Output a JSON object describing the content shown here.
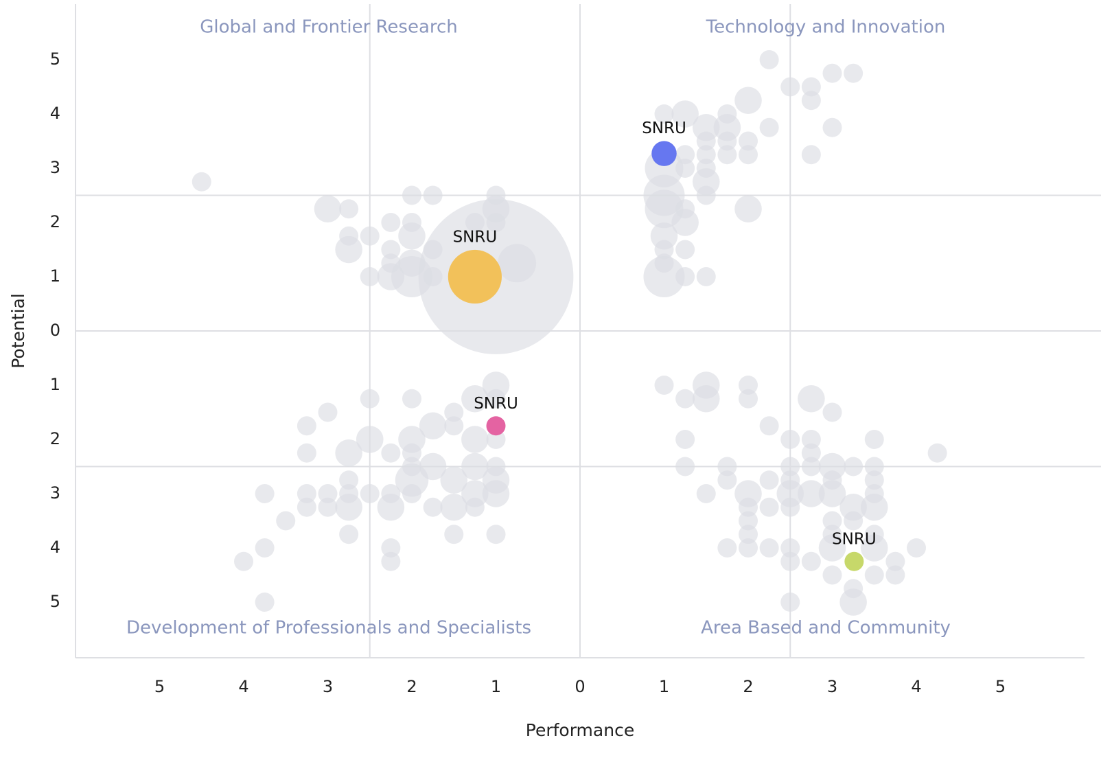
{
  "chart_data": {
    "type": "bubble",
    "x_label": "Performance",
    "y_label": "Potential",
    "quadrant_labels": [
      "Global and Frontier Research",
      "Technology and Innovation",
      "Development of Professionals and Specialists",
      "Area Based and Community"
    ],
    "xlim": [
      -6,
      6
    ],
    "ylim": [
      -6,
      6
    ],
    "xticks": [
      {
        "value": -5,
        "label": "5"
      },
      {
        "value": -4,
        "label": "4"
      },
      {
        "value": -3,
        "label": "3"
      },
      {
        "value": -2,
        "label": "2"
      },
      {
        "value": -1,
        "label": "1"
      },
      0,
      1,
      2,
      3,
      4,
      5
    ],
    "yticks": [
      {
        "value": -5,
        "label": "5"
      },
      {
        "value": -4,
        "label": "4"
      },
      {
        "value": -3,
        "label": "3"
      },
      {
        "value": -2,
        "label": "2"
      },
      {
        "value": -1,
        "label": "1"
      },
      0,
      1,
      2,
      3,
      4,
      5
    ],
    "xgrid": [
      -2.5,
      0,
      2.5
    ],
    "ygrid": [
      -2.5,
      0,
      2.5
    ],
    "series": [
      {
        "color": "#dcdde3",
        "x": [
          -1,
          -4.5,
          -3,
          -2.75,
          -2.75,
          -2.75,
          -2.5,
          -2.5,
          -2.25,
          -2.25,
          -2.25,
          -2.25,
          -2,
          -2,
          -2,
          -2,
          -2,
          -1.75,
          -1.75,
          -1.75,
          -1,
          -1,
          -1.25,
          -1,
          -0.75,
          2.25,
          2.5,
          2.75,
          2.75,
          3,
          3.25,
          2,
          1.75,
          1,
          1.25,
          1.5,
          1.75,
          2.25,
          3,
          1.5,
          1.75,
          2,
          1.5,
          1.75,
          2,
          2.75,
          1.25,
          1,
          1.5,
          1.25,
          1.5,
          1.5,
          1,
          1,
          1.25,
          2,
          1.25,
          1,
          1,
          1.25,
          1,
          1,
          1.25,
          1.5,
          -1,
          -1.25,
          -1,
          -2.5,
          -2,
          -3,
          -3.25,
          -1.5,
          -1.75,
          -1.5,
          -2.5,
          -2,
          -1.25,
          -1,
          -3.25,
          -2.75,
          -2.25,
          -2,
          -2,
          -1.75,
          -1.25,
          -1,
          -2.75,
          -2,
          -1.5,
          -1,
          -3.75,
          -3.25,
          -3,
          -2.75,
          -2.5,
          -2.25,
          -2,
          -1.25,
          -1,
          -3.25,
          -3,
          -2.75,
          -2.25,
          -1.75,
          -1.5,
          -1.25,
          -3.5,
          -2.75,
          -1.5,
          -1,
          -3.75,
          -2.25,
          -4,
          -2.25,
          -3.75,
          1,
          1.5,
          2,
          1.25,
          1.5,
          2,
          2.75,
          3,
          2.25,
          1.25,
          2.5,
          2.75,
          3.5,
          4.25,
          2.75,
          1.25,
          1.75,
          2.5,
          2.75,
          3,
          3.25,
          3.5,
          1.75,
          2.25,
          2.5,
          3,
          3.5,
          1.5,
          2,
          2.5,
          2.75,
          3,
          3.5,
          2,
          2.25,
          2.5,
          3.25,
          3.5,
          2,
          3,
          3.25,
          2,
          3,
          3.5,
          1.75,
          2,
          2.25,
          2.5,
          3,
          3.5,
          4,
          2.5,
          2.75,
          3.75,
          3,
          3.5,
          3.75,
          3.25,
          2.5,
          3.25
        ],
        "y": [
          1,
          2.75,
          2.25,
          2.25,
          1.75,
          1.5,
          1.75,
          1,
          2,
          1.5,
          1.25,
          1,
          2.5,
          2,
          1.75,
          1.25,
          1,
          2.5,
          1.5,
          1,
          2.5,
          2.25,
          2,
          2,
          1.25,
          5,
          4.5,
          4.5,
          4.25,
          4.75,
          4.75,
          4.25,
          4,
          4,
          4,
          3.75,
          3.75,
          3.75,
          3.75,
          3.5,
          3.5,
          3.5,
          3.25,
          3.25,
          3.25,
          3.25,
          3.25,
          3,
          3,
          3,
          2.75,
          2.5,
          2.5,
          2.25,
          2.25,
          2.25,
          2,
          1.75,
          1.5,
          1.5,
          1.25,
          1,
          1,
          1,
          -1,
          -1.25,
          -1.25,
          -1.25,
          -1.25,
          -1.5,
          -1.75,
          -1.5,
          -1.75,
          -1.75,
          -2,
          -2,
          -2,
          -2,
          -2.25,
          -2.25,
          -2.25,
          -2.25,
          -2.5,
          -2.5,
          -2.5,
          -2.5,
          -2.75,
          -2.75,
          -2.75,
          -2.75,
          -3,
          -3,
          -3,
          -3,
          -3,
          -3,
          -3,
          -3,
          -3,
          -3.25,
          -3.25,
          -3.25,
          -3.25,
          -3.25,
          -3.25,
          -3.25,
          -3.5,
          -3.75,
          -3.75,
          -3.75,
          -4,
          -4,
          -4.25,
          -4.25,
          -5,
          -1,
          -1,
          -1,
          -1.25,
          -1.25,
          -1.25,
          -1.25,
          -1.5,
          -1.75,
          -2,
          -2,
          -2,
          -2,
          -2.25,
          -2.25,
          -2.5,
          -2.5,
          -2.5,
          -2.5,
          -2.5,
          -2.5,
          -2.5,
          -2.75,
          -2.75,
          -2.75,
          -2.75,
          -2.75,
          -3,
          -3,
          -3,
          -3,
          -3,
          -3,
          -3.25,
          -3.25,
          -3.25,
          -3.25,
          -3.25,
          -3.5,
          -3.5,
          -3.5,
          -3.75,
          -3.75,
          -3.75,
          -4,
          -4,
          -4,
          -4,
          -4,
          -4,
          -4,
          -4.25,
          -4.25,
          -4.25,
          -4.5,
          -4.5,
          -4.5,
          -4.75,
          -5,
          -5
        ],
        "size": [
          65,
          1,
          2,
          1,
          1,
          2,
          1,
          1,
          1,
          1,
          1,
          2,
          1,
          1,
          2,
          2,
          4.6,
          1,
          1,
          1,
          1,
          2,
          1,
          1,
          4,
          1,
          1,
          1,
          1,
          1,
          1,
          2,
          1,
          1,
          2,
          2,
          2,
          1,
          1,
          1,
          1,
          1,
          1,
          1,
          1,
          1,
          1,
          4,
          1,
          1,
          2,
          1,
          4.6,
          4,
          1,
          2,
          2,
          2,
          1,
          1,
          1,
          4.6,
          1,
          1,
          2,
          2,
          1,
          1,
          1,
          1,
          1,
          1,
          2,
          1,
          2,
          2,
          2,
          1,
          1,
          2,
          1,
          1,
          1,
          2,
          2,
          1,
          1,
          3,
          2,
          2,
          1,
          1,
          1,
          1,
          1,
          1,
          1,
          2,
          2,
          1,
          1,
          2,
          2,
          1,
          2,
          1,
          1,
          1,
          1,
          1,
          1,
          1,
          1,
          1,
          1,
          1,
          2,
          1,
          1,
          2,
          1,
          2,
          1,
          1,
          1,
          1,
          1,
          1,
          1,
          1,
          1,
          1,
          1,
          1,
          2,
          1,
          1,
          1,
          1,
          1,
          1,
          1,
          1,
          2,
          2,
          2,
          2,
          1,
          1,
          1,
          1,
          2,
          2,
          1,
          1,
          1,
          1,
          1,
          1,
          1,
          1,
          1,
          1,
          2,
          2,
          1,
          1,
          1,
          1,
          1,
          1,
          1,
          1,
          1,
          2
        ]
      },
      {
        "name": "SNRU",
        "color": "#f2c15a",
        "x": [
          -1.25
        ],
        "y": [
          1
        ],
        "size": [
          7.8
        ]
      },
      {
        "name": "SNRU",
        "color": "#6677f0",
        "x": [
          1
        ],
        "y": [
          3.27
        ],
        "size": [
          1.7
        ]
      },
      {
        "name": "SNRU",
        "color": "#e463a2",
        "x": [
          -1
        ],
        "y": [
          -1.75
        ],
        "size": [
          1
        ]
      },
      {
        "name": "SNRU",
        "color": "#c7d86a",
        "x": [
          3.26
        ],
        "y": [
          -4.25
        ],
        "size": [
          1
        ]
      }
    ]
  }
}
